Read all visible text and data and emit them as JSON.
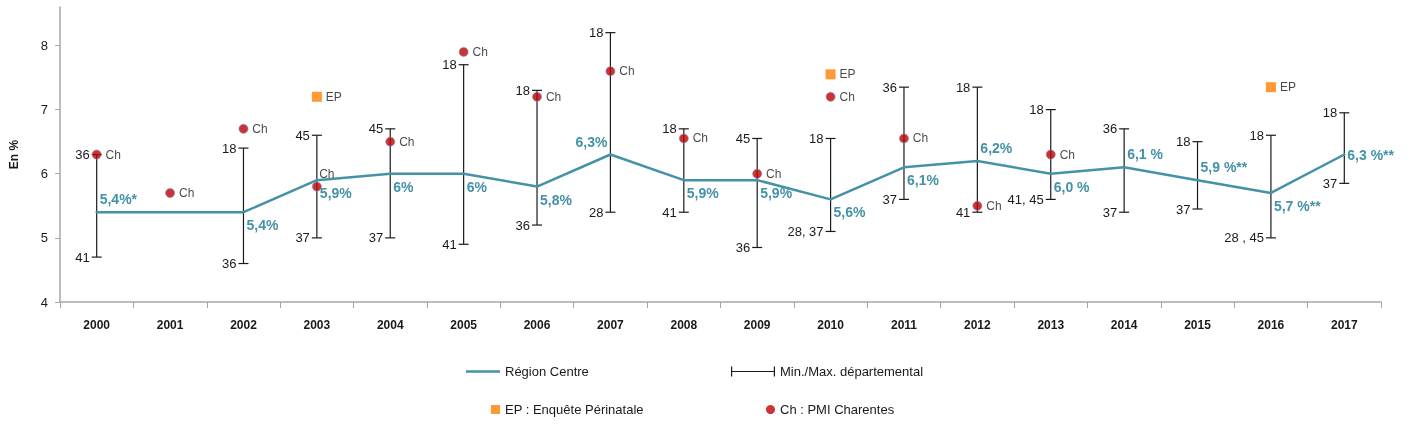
{
  "chart_data": {
    "type": "line",
    "ylabel": "En %",
    "categories": [
      "2000",
      "2001",
      "2002",
      "2003",
      "2004",
      "2005",
      "2006",
      "2007",
      "2008",
      "2009",
      "2010",
      "2011",
      "2012",
      "2013",
      "2014",
      "2015",
      "2016",
      "2017"
    ],
    "series": [
      {
        "name": "Région Centre",
        "color": "#4592a6",
        "marker": "none",
        "line_style": "solid",
        "values": [
          5.4,
          5.4,
          5.4,
          5.9,
          6,
          6,
          5.8,
          6.3,
          5.9,
          5.9,
          5.6,
          6.1,
          6.2,
          6.0,
          6.1,
          5.9,
          5.7,
          6.3
        ],
        "value_labels": [
          "5,4%*",
          null,
          "5,4%",
          "5,9%",
          "6%",
          "6%",
          "5,8%",
          "6,3%",
          "5,9%",
          "5,9%",
          "5,6%",
          "6,1%",
          "6,2%",
          "6,0 %",
          "6,1 %",
          "5,9 %**",
          "5,7 %**",
          "6,3 %**"
        ],
        "errors": [
          [
            4.7,
            6.3
          ],
          null,
          [
            4.6,
            6.4
          ],
          [
            5.0,
            6.6
          ],
          [
            5.0,
            6.7
          ],
          [
            4.9,
            7.7
          ],
          [
            5.2,
            7.3
          ],
          [
            5.4,
            8.2
          ],
          [
            5.4,
            6.7
          ],
          [
            4.85,
            6.55
          ],
          [
            5.1,
            6.55
          ],
          [
            5.6,
            7.35
          ],
          [
            5.4,
            7.35
          ],
          [
            5.6,
            7.0
          ],
          [
            5.4,
            6.7
          ],
          [
            5.45,
            6.5
          ],
          [
            5.0,
            6.6
          ],
          [
            5.85,
            6.95
          ]
        ]
      },
      {
        "name": "EP : Enquête Périnatale",
        "type": "scatter",
        "color": "#ff8000",
        "marker": "square",
        "values": [
          null,
          null,
          null,
          7.2,
          null,
          null,
          null,
          null,
          null,
          null,
          7.55,
          null,
          null,
          null,
          null,
          null,
          7.35,
          null
        ],
        "value_labels": [
          null,
          null,
          null,
          "EP",
          null,
          null,
          null,
          null,
          null,
          null,
          "EP",
          null,
          null,
          null,
          null,
          null,
          "EP",
          null
        ]
      },
      {
        "name": "Ch : PMI Charentes",
        "type": "scatter",
        "color": "#c00000",
        "marker": "circle",
        "values": [
          6.3,
          5.7,
          6.7,
          5.8,
          6.5,
          7.9,
          7.2,
          7.6,
          6.55,
          6.0,
          7.2,
          6.55,
          5.5,
          6.3,
          null,
          null,
          null,
          null
        ],
        "value_labels": [
          "Ch",
          "Ch",
          "Ch",
          "Ch",
          "Ch",
          "Ch",
          "Ch",
          "Ch",
          "Ch",
          "Ch",
          "Ch",
          "Ch",
          "Ch",
          "Ch",
          null,
          null,
          null,
          null
        ]
      }
    ],
    "ylim": [
      4,
      8.6
    ],
    "yticks": [
      4,
      5,
      6,
      7,
      8
    ],
    "legend": "bottom",
    "annotations": [
      "Min./Max. départemental",
      {
        "text": "36",
        "x": "2000",
        "y": 6.3
      },
      {
        "text": "41",
        "x": "2000",
        "y": 4.7
      },
      {
        "text": "18",
        "x": "2002",
        "y": 6.4
      },
      {
        "text": "36",
        "x": "2002",
        "y": 4.6
      },
      {
        "text": "45",
        "x": "2003",
        "y": 6.6
      },
      {
        "text": "37",
        "x": "2003",
        "y": 5.0
      },
      {
        "text": "45",
        "x": "2004",
        "y": 6.7
      },
      {
        "text": "37",
        "x": "2004",
        "y": 5.0
      },
      {
        "text": "18",
        "x": "2005",
        "y": 7.7
      },
      {
        "text": "41",
        "x": "2005",
        "y": 4.9
      },
      {
        "text": "18",
        "x": "2006",
        "y": 7.3
      },
      {
        "text": "36",
        "x": "2006",
        "y": 5.2
      },
      {
        "text": "18",
        "x": "2007",
        "y": 8.2
      },
      {
        "text": "28",
        "x": "2007",
        "y": 5.4
      },
      {
        "text": "18",
        "x": "2008",
        "y": 6.7
      },
      {
        "text": "41",
        "x": "2008",
        "y": 5.4
      },
      {
        "text": "45",
        "x": "2009",
        "y": 6.55
      },
      {
        "text": "36",
        "x": "2009",
        "y": 4.85
      },
      {
        "text": "18",
        "x": "2010",
        "y": 6.55
      },
      {
        "text": "28, 37",
        "x": "2010",
        "y": 5.1
      },
      {
        "text": "36",
        "x": "2011",
        "y": 7.35
      },
      {
        "text": "37",
        "x": "2011",
        "y": 5.6
      },
      {
        "text": "18",
        "x": "2012",
        "y": 7.35
      },
      {
        "text": "41",
        "x": "2012",
        "y": 5.4
      },
      {
        "text": "18",
        "x": "2013",
        "y": 7.0
      },
      {
        "text": "41, 45",
        "x": "2013",
        "y": 5.6
      },
      {
        "text": "36",
        "x": "2014",
        "y": 6.7
      },
      {
        "text": "37",
        "x": "2014",
        "y": 5.4
      },
      {
        "text": "18",
        "x": "2015",
        "y": 6.5
      },
      {
        "text": "37",
        "x": "2015",
        "y": 5.45
      },
      {
        "text": "18",
        "x": "2016",
        "y": 6.6
      },
      {
        "text": "28 , 45",
        "x": "2016",
        "y": 5.0
      },
      {
        "text": "18",
        "x": "2017",
        "y": 6.95
      },
      {
        "text": "37",
        "x": "2017",
        "y": 5.85
      }
    ]
  }
}
